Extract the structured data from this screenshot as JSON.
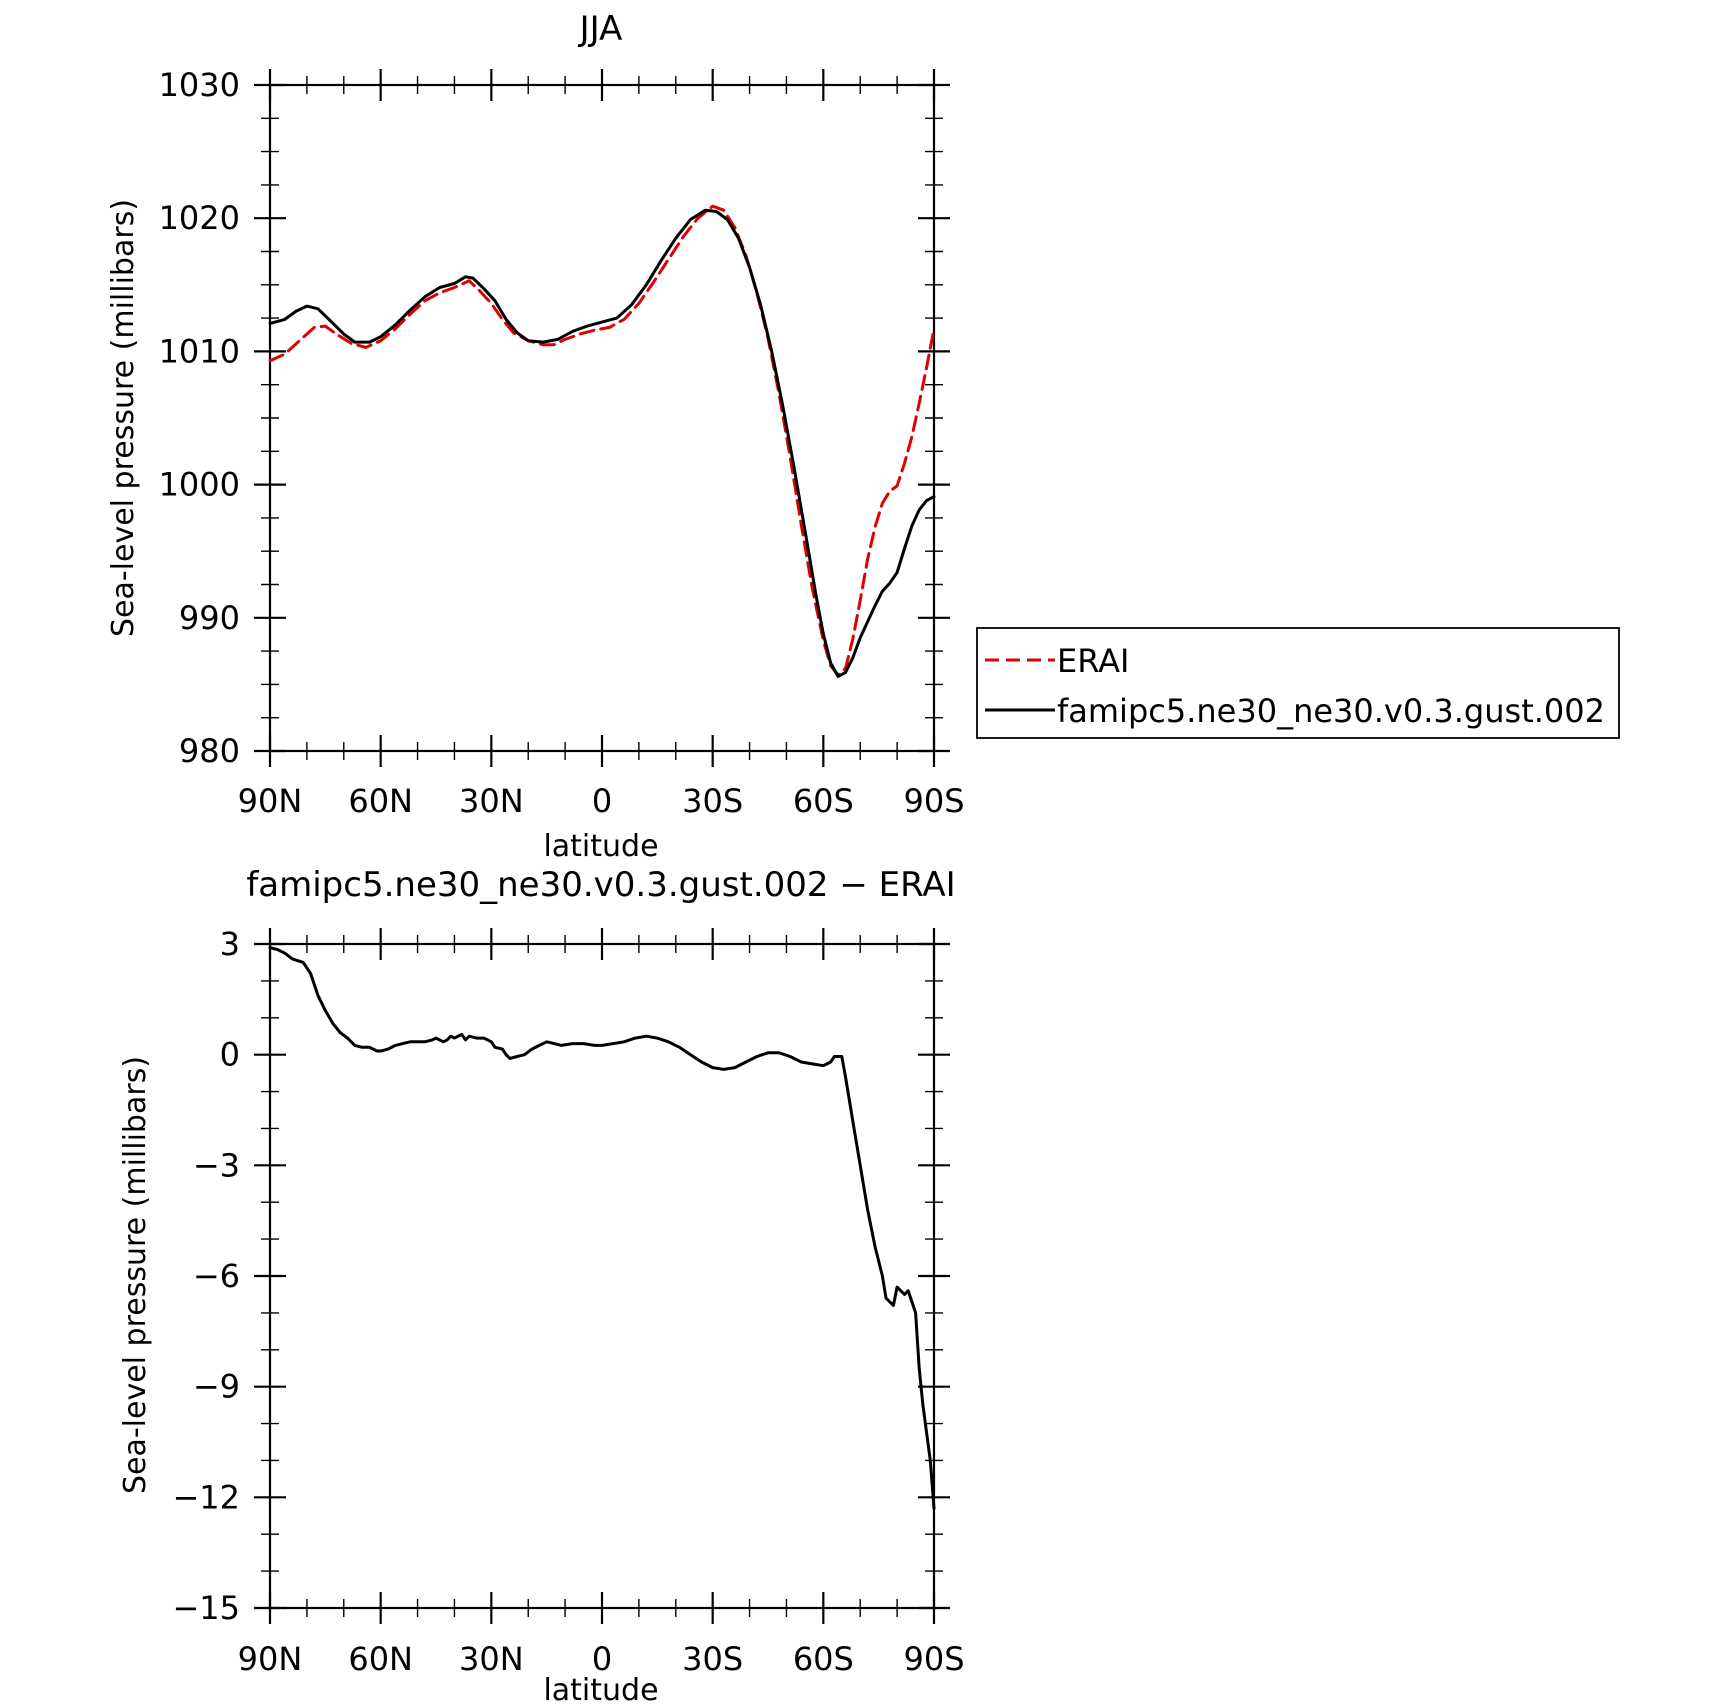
{
  "chart_data": [
    {
      "type": "line",
      "title": "JJA",
      "xlabel": "latitude",
      "ylabel": "Sea-level pressure (millibars)",
      "x_range": [
        90,
        -90
      ],
      "x_ticks": [
        90,
        60,
        30,
        0,
        -30,
        -60,
        -90
      ],
      "x_tick_labels": [
        "90N",
        "60N",
        "30N",
        "0",
        "30S",
        "60S",
        "90S"
      ],
      "ylim": [
        980,
        1030
      ],
      "y_ticks": [
        980,
        990,
        1000,
        1010,
        1020,
        1030
      ],
      "y_tick_labels": [
        "980",
        "990",
        "1000",
        "1010",
        "1020",
        "1030"
      ],
      "legend_position": "right",
      "series": [
        {
          "name": "ERAI",
          "color": "#e00000",
          "style": "dashed",
          "points": [
            [
              90,
              1009.3
            ],
            [
              86,
              1009.8
            ],
            [
              82,
              1010.8
            ],
            [
              78,
              1011.8
            ],
            [
              75,
              1011.9
            ],
            [
              72,
              1011.3
            ],
            [
              68,
              1010.6
            ],
            [
              64,
              1010.3
            ],
            [
              60,
              1010.8
            ],
            [
              56,
              1011.7
            ],
            [
              52,
              1012.8
            ],
            [
              48,
              1013.8
            ],
            [
              44,
              1014.4
            ],
            [
              40,
              1014.8
            ],
            [
              36,
              1015.3
            ],
            [
              33,
              1014.5
            ],
            [
              30,
              1013.6
            ],
            [
              27,
              1012.4
            ],
            [
              24,
              1011.4
            ],
            [
              20,
              1010.8
            ],
            [
              16,
              1010.5
            ],
            [
              13,
              1010.5
            ],
            [
              10,
              1010.9
            ],
            [
              6,
              1011.3
            ],
            [
              2,
              1011.6
            ],
            [
              -2,
              1011.8
            ],
            [
              -6,
              1012.4
            ],
            [
              -10,
              1013.6
            ],
            [
              -14,
              1015.2
            ],
            [
              -18,
              1016.9
            ],
            [
              -22,
              1018.6
            ],
            [
              -26,
              1020.0
            ],
            [
              -30,
              1020.9
            ],
            [
              -33,
              1020.6
            ],
            [
              -36,
              1019.3
            ],
            [
              -39,
              1017.2
            ],
            [
              -42,
              1014.4
            ],
            [
              -45,
              1011.0
            ],
            [
              -48,
              1006.8
            ],
            [
              -51,
              1002.1
            ],
            [
              -54,
              997.0
            ],
            [
              -57,
              992.2
            ],
            [
              -60,
              988.3
            ],
            [
              -62,
              986.4
            ],
            [
              -64,
              985.7
            ],
            [
              -66,
              986.2
            ],
            [
              -68,
              988.4
            ],
            [
              -70,
              991.3
            ],
            [
              -72,
              994.4
            ],
            [
              -74,
              996.8
            ],
            [
              -76,
              998.6
            ],
            [
              -78,
              999.5
            ],
            [
              -80,
              999.9
            ],
            [
              -82,
              1001.6
            ],
            [
              -84,
              1003.6
            ],
            [
              -86,
              1006.1
            ],
            [
              -88,
              1008.8
            ],
            [
              -90,
              1011.7
            ]
          ]
        },
        {
          "name": "famipc5.ne30_ne30.v0.3.gust.002",
          "color": "#000000",
          "style": "solid",
          "points": [
            [
              90,
              1012.1
            ],
            [
              86,
              1012.4
            ],
            [
              83,
              1013.0
            ],
            [
              80,
              1013.4
            ],
            [
              77,
              1013.2
            ],
            [
              74,
              1012.4
            ],
            [
              70,
              1011.3
            ],
            [
              67,
              1010.7
            ],
            [
              63,
              1010.7
            ],
            [
              60,
              1011.1
            ],
            [
              56,
              1012.0
            ],
            [
              52,
              1013.1
            ],
            [
              48,
              1014.1
            ],
            [
              44,
              1014.8
            ],
            [
              40,
              1015.1
            ],
            [
              37,
              1015.6
            ],
            [
              35,
              1015.5
            ],
            [
              32,
              1014.7
            ],
            [
              29,
              1013.8
            ],
            [
              26,
              1012.4
            ],
            [
              23,
              1011.4
            ],
            [
              20,
              1010.8
            ],
            [
              16,
              1010.7
            ],
            [
              12,
              1010.9
            ],
            [
              8,
              1011.5
            ],
            [
              4,
              1011.9
            ],
            [
              0,
              1012.2
            ],
            [
              -4,
              1012.5
            ],
            [
              -8,
              1013.5
            ],
            [
              -12,
              1015.0
            ],
            [
              -16,
              1016.8
            ],
            [
              -20,
              1018.5
            ],
            [
              -24,
              1019.9
            ],
            [
              -28,
              1020.6
            ],
            [
              -31,
              1020.5
            ],
            [
              -34,
              1019.9
            ],
            [
              -37,
              1018.5
            ],
            [
              -40,
              1016.3
            ],
            [
              -43,
              1013.5
            ],
            [
              -46,
              1010.0
            ],
            [
              -49,
              1005.9
            ],
            [
              -52,
              1001.4
            ],
            [
              -55,
              996.6
            ],
            [
              -58,
              991.7
            ],
            [
              -60,
              988.8
            ],
            [
              -62,
              986.6
            ],
            [
              -64,
              985.6
            ],
            [
              -66,
              985.9
            ],
            [
              -68,
              987.0
            ],
            [
              -70,
              988.5
            ],
            [
              -72,
              989.7
            ],
            [
              -74,
              990.9
            ],
            [
              -76,
              992.0
            ],
            [
              -78,
              992.6
            ],
            [
              -80,
              993.4
            ],
            [
              -82,
              995.2
            ],
            [
              -84,
              996.9
            ],
            [
              -86,
              998.1
            ],
            [
              -88,
              998.8
            ],
            [
              -90,
              999.1
            ]
          ]
        }
      ]
    },
    {
      "type": "line",
      "title": "famipc5.ne30_ne30.v0.3.gust.002 − ERAI",
      "xlabel": "latitude",
      "ylabel": "Sea-level pressure (millibars)",
      "x_range": [
        90,
        -90
      ],
      "x_ticks": [
        90,
        60,
        30,
        0,
        -30,
        -60,
        -90
      ],
      "x_tick_labels": [
        "90N",
        "60N",
        "30N",
        "0",
        "30S",
        "60S",
        "90S"
      ],
      "ylim": [
        -15,
        3
      ],
      "y_ticks": [
        -15,
        -12,
        -9,
        -6,
        -3,
        0,
        3
      ],
      "y_tick_labels": [
        "−15",
        "−12",
        "−9",
        "−6",
        "−3",
        "0",
        "3"
      ],
      "series": [
        {
          "color": "#000000",
          "style": "solid",
          "points": [
            [
              90,
              2.9
            ],
            [
              88,
              2.85
            ],
            [
              86,
              2.75
            ],
            [
              84,
              2.6
            ],
            [
              81,
              2.5
            ],
            [
              79,
              2.2
            ],
            [
              77,
              1.6
            ],
            [
              75,
              1.2
            ],
            [
              73,
              0.85
            ],
            [
              71,
              0.6
            ],
            [
              69,
              0.45
            ],
            [
              67,
              0.25
            ],
            [
              65,
              0.2
            ],
            [
              63,
              0.2
            ],
            [
              61,
              0.1
            ],
            [
              60,
              0.1
            ],
            [
              58,
              0.15
            ],
            [
              56,
              0.25
            ],
            [
              54,
              0.3
            ],
            [
              52,
              0.35
            ],
            [
              50,
              0.35
            ],
            [
              48,
              0.35
            ],
            [
              46,
              0.4
            ],
            [
              45,
              0.45
            ],
            [
              43,
              0.35
            ],
            [
              42,
              0.4
            ],
            [
              41,
              0.5
            ],
            [
              40,
              0.45
            ],
            [
              39,
              0.5
            ],
            [
              38,
              0.55
            ],
            [
              37,
              0.4
            ],
            [
              36,
              0.5
            ],
            [
              34,
              0.45
            ],
            [
              32,
              0.45
            ],
            [
              30,
              0.35
            ],
            [
              29,
              0.2
            ],
            [
              27,
              0.15
            ],
            [
              26,
              0.0
            ],
            [
              25,
              -0.1
            ],
            [
              23,
              -0.05
            ],
            [
              21,
              0.0
            ],
            [
              19,
              0.15
            ],
            [
              17,
              0.25
            ],
            [
              15,
              0.35
            ],
            [
              13,
              0.3
            ],
            [
              11,
              0.25
            ],
            [
              8,
              0.3
            ],
            [
              5,
              0.3
            ],
            [
              2,
              0.25
            ],
            [
              0,
              0.25
            ],
            [
              -3,
              0.3
            ],
            [
              -6,
              0.35
            ],
            [
              -9,
              0.45
            ],
            [
              -12,
              0.5
            ],
            [
              -15,
              0.45
            ],
            [
              -18,
              0.35
            ],
            [
              -21,
              0.2
            ],
            [
              -24,
              0.0
            ],
            [
              -27,
              -0.2
            ],
            [
              -30,
              -0.35
            ],
            [
              -33,
              -0.4
            ],
            [
              -36,
              -0.35
            ],
            [
              -39,
              -0.2
            ],
            [
              -42,
              -0.05
            ],
            [
              -45,
              0.05
            ],
            [
              -48,
              0.05
            ],
            [
              -51,
              -0.05
            ],
            [
              -54,
              -0.2
            ],
            [
              -57,
              -0.25
            ],
            [
              -60,
              -0.3
            ],
            [
              -62,
              -0.2
            ],
            [
              -63,
              -0.05
            ],
            [
              -65,
              -0.05
            ],
            [
              -66,
              -0.6
            ],
            [
              -68,
              -1.8
            ],
            [
              -70,
              -3.0
            ],
            [
              -72,
              -4.2
            ],
            [
              -74,
              -5.2
            ],
            [
              -76,
              -6.0
            ],
            [
              -77,
              -6.6
            ],
            [
              -79,
              -6.8
            ],
            [
              -80,
              -6.3
            ],
            [
              -81,
              -6.4
            ],
            [
              -82,
              -6.5
            ],
            [
              -83,
              -6.4
            ],
            [
              -85,
              -7.0
            ],
            [
              -86,
              -8.5
            ],
            [
              -87,
              -9.5
            ],
            [
              -89,
              -11.0
            ],
            [
              -90,
              -12.3
            ]
          ]
        }
      ]
    }
  ]
}
